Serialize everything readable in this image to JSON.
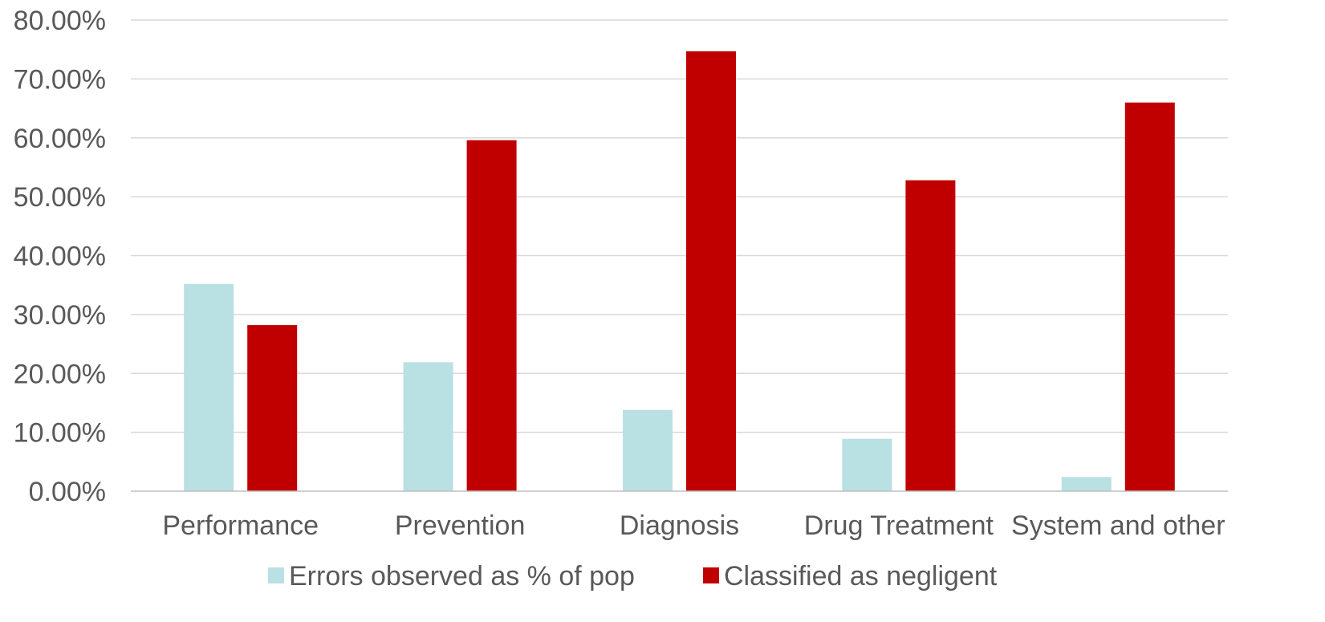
{
  "chart_data": {
    "type": "bar",
    "title": "",
    "xlabel": "",
    "ylabel": "",
    "categories": [
      "Performance",
      "Prevention",
      "Diagnosis",
      "Drug Treatment",
      "System and other"
    ],
    "series": [
      {
        "name": "Errors observed as % of pop",
        "color": "#b9e0e3",
        "values": [
          35.2,
          21.9,
          13.8,
          8.9,
          2.4
        ]
      },
      {
        "name": "Classified as negligent",
        "color": "#c00000",
        "values": [
          28.2,
          59.6,
          74.7,
          52.8,
          66.0
        ]
      }
    ],
    "ylim": [
      0,
      80
    ],
    "yticks": [
      0,
      10,
      20,
      30,
      40,
      50,
      60,
      70,
      80
    ],
    "ytick_labels": [
      "0.00%",
      "10.00%",
      "20.00%",
      "30.00%",
      "40.00%",
      "50.00%",
      "60.00%",
      "70.00%",
      "80.00%"
    ],
    "grid": true,
    "legend_position": "bottom"
  }
}
